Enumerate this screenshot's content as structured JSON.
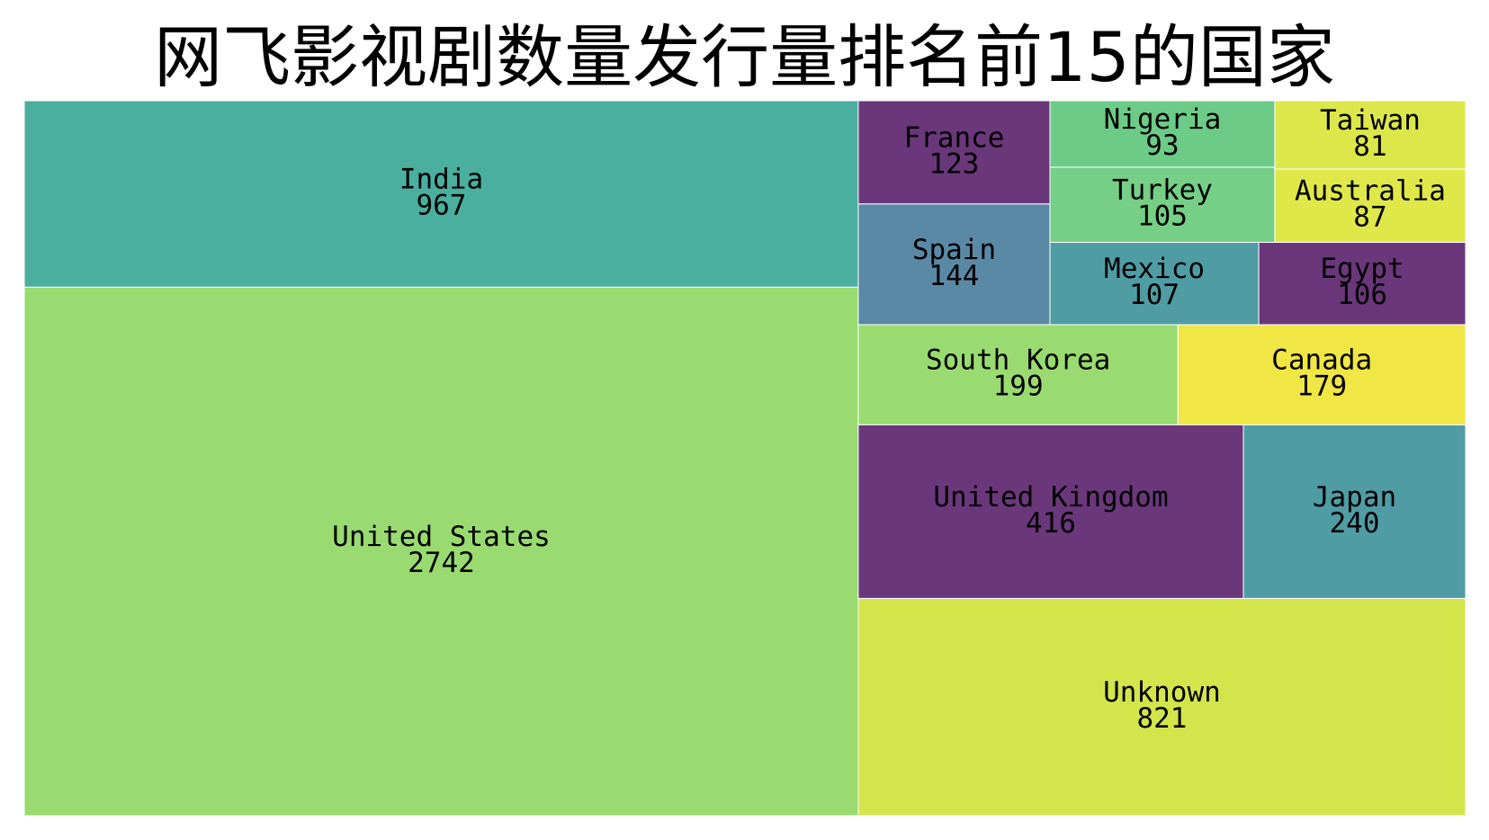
{
  "chart_data": {
    "type": "treemap",
    "title": "网飞影视剧数量发行量排名前15的国家",
    "items": [
      {
        "label": "United States",
        "value": 2742,
        "color": "#99db71"
      },
      {
        "label": "India",
        "value": 967,
        "color": "#4baf9f"
      },
      {
        "label": "Unknown",
        "value": 821,
        "color": "#d3e54b"
      },
      {
        "label": "United Kingdom",
        "value": 416,
        "color": "#6a377b"
      },
      {
        "label": "Japan",
        "value": 240,
        "color": "#4f9ca4"
      },
      {
        "label": "South Korea",
        "value": 199,
        "color": "#99db71"
      },
      {
        "label": "Canada",
        "value": 179,
        "color": "#f0e644"
      },
      {
        "label": "Spain",
        "value": 144,
        "color": "#5a89a6"
      },
      {
        "label": "France",
        "value": 123,
        "color": "#6a377b"
      },
      {
        "label": "Mexico",
        "value": 107,
        "color": "#4f9ca4"
      },
      {
        "label": "Egypt",
        "value": 106,
        "color": "#6a377b"
      },
      {
        "label": "Turkey",
        "value": 105,
        "color": "#75cf86"
      },
      {
        "label": "Nigeria",
        "value": 93,
        "color": "#6dcb88"
      },
      {
        "label": "Australia",
        "value": 87,
        "color": "#e0e849"
      },
      {
        "label": "Taiwan",
        "value": 81,
        "color": "#dce84a"
      }
    ]
  }
}
